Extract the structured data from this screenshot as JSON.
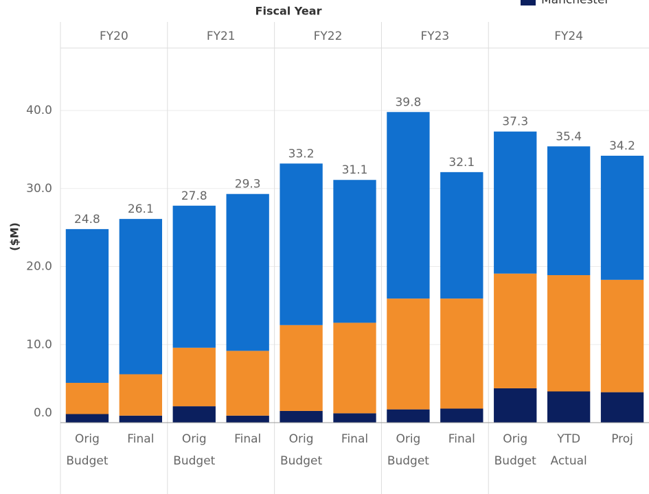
{
  "chart_data": {
    "type": "stacked_bar",
    "x_label": "Fiscal Year",
    "y_label": "($M)",
    "groups": [
      {
        "name": "FY20",
        "categories": [
          [
            "Orig",
            "Budget"
          ],
          [
            "Final"
          ]
        ]
      },
      {
        "name": "FY21",
        "categories": [
          [
            "Orig",
            "Budget"
          ],
          [
            "Final"
          ]
        ]
      },
      {
        "name": "FY22",
        "categories": [
          [
            "Orig",
            "Budget"
          ],
          [
            "Final"
          ]
        ]
      },
      {
        "name": "FY23",
        "categories": [
          [
            "Orig",
            "Budget"
          ],
          [
            "Final"
          ]
        ]
      },
      {
        "name": "FY24",
        "categories": [
          [
            "Orig",
            "Budget"
          ],
          [
            "YTD",
            "Actual"
          ],
          [
            "Proj"
          ]
        ]
      }
    ],
    "series": [
      {
        "name": "Manchester",
        "color": "#0b1f5e",
        "values": [
          1.1,
          0.9,
          2.1,
          0.9,
          1.5,
          1.2,
          1.7,
          1.8,
          4.4,
          4.0,
          3.9
        ]
      },
      {
        "color": "#f28e2b",
        "values": [
          4.0,
          5.3,
          7.5,
          8.3,
          11.0,
          11.6,
          14.2,
          14.1,
          14.7,
          14.9,
          14.4
        ]
      },
      {
        "color": "#1170cf",
        "values": [
          19.7,
          19.9,
          18.2,
          20.1,
          20.7,
          18.3,
          23.9,
          16.2,
          18.2,
          16.5,
          15.9
        ]
      }
    ],
    "totals": [
      24.8,
      26.1,
      27.8,
      29.3,
      33.2,
      31.1,
      39.8,
      32.1,
      37.3,
      35.4,
      34.2
    ],
    "ylim": [
      0,
      48
    ],
    "yticks": [
      {
        "value": 0,
        "label": "0.0"
      },
      {
        "value": 10,
        "label": "10.0"
      },
      {
        "value": 20,
        "label": "20.0"
      },
      {
        "value": 30,
        "label": "30.0"
      },
      {
        "value": 40,
        "label": "40.0"
      }
    ],
    "grid": true
  }
}
